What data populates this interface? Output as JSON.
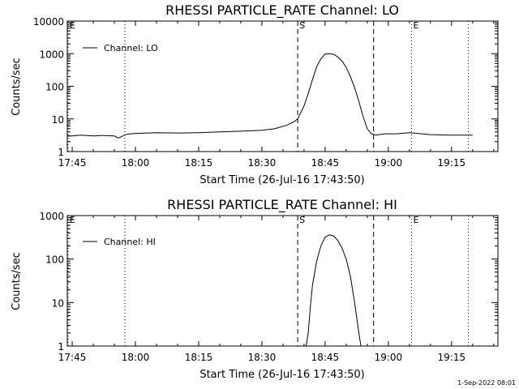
{
  "footer_stamp": "1-Sep-2022 08:01",
  "colors": {
    "background": "#ffffff",
    "foreground": "#000000"
  },
  "chart_data": [
    {
      "type": "line",
      "title": "RHESSI PARTICLE_RATE Channel: LO",
      "xlabel": "Start Time (26-Jul-16 17:43:50)",
      "ylabel": "Counts/sec",
      "yscale": "log",
      "ylim": [
        1,
        10000
      ],
      "xlim": [
        "17:43:50",
        "19:26:00"
      ],
      "x_ticks": [
        "17:45",
        "18:00",
        "18:15",
        "18:30",
        "18:45",
        "19:00",
        "19:15"
      ],
      "y_ticks": [
        "1",
        "10",
        "100",
        "1000",
        "10000"
      ],
      "legend": {
        "position": "top-left",
        "entries": [
          "Channel: LO"
        ]
      },
      "markers": [
        {
          "label": "E",
          "time": "17:44:00",
          "style": "dotted"
        },
        {
          "label": "",
          "time": "17:57:30",
          "style": "dotted"
        },
        {
          "label": "S",
          "time": "18:38:30",
          "style": "dashed"
        },
        {
          "label": "",
          "time": "18:56:30",
          "style": "dashed"
        },
        {
          "label": "E",
          "time": "19:05:30",
          "style": "dotted"
        },
        {
          "label": "",
          "time": "19:19:00",
          "style": "dotted"
        }
      ],
      "series": [
        {
          "name": "Channel: LO",
          "x": [
            "17:44:00",
            "17:45:00",
            "17:47:00",
            "17:50:00",
            "17:52:00",
            "17:55:00",
            "17:56:00",
            "17:57:00",
            "17:58:00",
            "18:00:00",
            "18:05:00",
            "18:10:00",
            "18:15:00",
            "18:20:00",
            "18:25:00",
            "18:30:00",
            "18:33:00",
            "18:36:00",
            "18:37:30",
            "18:38:30",
            "18:40:00",
            "18:41:00",
            "18:42:00",
            "18:43:00",
            "18:44:00",
            "18:45:00",
            "18:46:00",
            "18:47:00",
            "18:48:00",
            "18:49:00",
            "18:50:00",
            "18:51:00",
            "18:52:00",
            "18:53:00",
            "18:54:00",
            "18:55:00",
            "18:56:00",
            "18:57:00",
            "18:59:00",
            "19:02:00",
            "19:05:00",
            "19:10:00",
            "19:15:00",
            "19:20:00"
          ],
          "values": [
            3,
            3,
            3.2,
            3,
            3.1,
            3,
            2.6,
            3,
            3.4,
            3.6,
            3.8,
            3.7,
            3.8,
            4,
            4.2,
            4.5,
            5,
            6.5,
            8,
            10,
            25,
            60,
            160,
            400,
            700,
            980,
            1000,
            950,
            800,
            600,
            380,
            200,
            90,
            35,
            12,
            5,
            3.5,
            3.2,
            3.5,
            3.5,
            3.8,
            3.3,
            3.2,
            3.2
          ]
        }
      ]
    },
    {
      "type": "line",
      "title": "RHESSI PARTICLE_RATE Channel: HI",
      "xlabel": "Start Time (26-Jul-16 17:43:50)",
      "ylabel": "Counts/sec",
      "yscale": "log",
      "ylim": [
        1,
        1000
      ],
      "xlim": [
        "17:43:50",
        "19:26:00"
      ],
      "x_ticks": [
        "17:45",
        "18:00",
        "18:15",
        "18:30",
        "18:45",
        "19:00",
        "19:15"
      ],
      "y_ticks": [
        "1",
        "10",
        "100",
        "1000"
      ],
      "legend": {
        "position": "top-left",
        "entries": [
          "Channel: HI"
        ]
      },
      "markers": [
        {
          "label": "E",
          "time": "17:44:00",
          "style": "dotted"
        },
        {
          "label": "",
          "time": "17:57:30",
          "style": "dotted"
        },
        {
          "label": "S",
          "time": "18:38:30",
          "style": "dashed"
        },
        {
          "label": "",
          "time": "18:56:30",
          "style": "dashed"
        },
        {
          "label": "E",
          "time": "19:05:30",
          "style": "dotted"
        },
        {
          "label": "",
          "time": "19:19:00",
          "style": "dotted"
        }
      ],
      "series": [
        {
          "name": "Channel: HI",
          "x": [
            "18:40:30",
            "18:41:00",
            "18:41:30",
            "18:42:00",
            "18:43:00",
            "18:44:00",
            "18:45:00",
            "18:46:00",
            "18:47:00",
            "18:48:00",
            "18:49:00",
            "18:50:00",
            "18:51:00",
            "18:52:00",
            "18:53:00",
            "18:53:30"
          ],
          "values": [
            1,
            2,
            8,
            25,
            90,
            200,
            320,
            360,
            340,
            270,
            180,
            100,
            40,
            10,
            2,
            1
          ]
        }
      ]
    }
  ]
}
